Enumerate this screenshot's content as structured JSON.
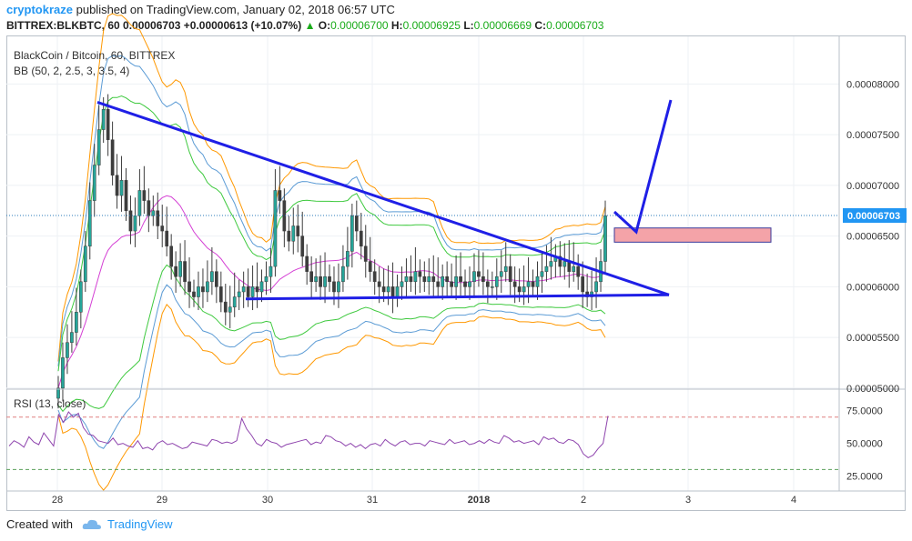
{
  "header": {
    "author": "cryptokraze",
    "published_text": "published on TradingView.com, January 02, 2018 06:57 UTC",
    "symbol": "BITTREX:BLKBTC, 60",
    "last": "0.00006703",
    "change": "+0.00000613 (+10.07%)",
    "o_label": "O:",
    "o": "0.00006700",
    "h_label": "H:",
    "h": "0.00006925",
    "l_label": "L:",
    "l": "0.00006669",
    "c_label": "C:",
    "c": "0.00006703"
  },
  "footer": {
    "created_with": "Created with",
    "brand": "TradingView"
  },
  "colors": {
    "up": "#26a69a",
    "down": "#ef5350",
    "candle": "#3d3d3d",
    "bb_orange": "#ff9800",
    "bb_blue": "#5b9bd5",
    "bb_green": "#3ec93e",
    "basis": "#d43fd4",
    "trendline": "#1f1fe6",
    "target_box": "#f4a3a8",
    "rsi": "#8e44ad",
    "price_badge": "#2196f3"
  },
  "chart_data": {
    "type": "candlestick",
    "title": "BlackCoin / Bitcoin, 60, BITTREX",
    "indicator_label": "BB (50, 2, 2.5, 3, 3.5, 4)",
    "x_ticks": [
      "28",
      "29",
      "30",
      "31",
      "2018",
      "2",
      "3",
      "4"
    ],
    "y_ticks": [
      "0.00008000",
      "0.00007500",
      "0.00007000",
      "0.00006500",
      "0.00006000",
      "0.00005500",
      "0.00005000"
    ],
    "y_range": [
      4.99e-05,
      8.47e-05
    ],
    "last_price_label": "0.00006703",
    "last_price": 6.703e-05,
    "candles_close": [
      5.0,
      5.3,
      5.45,
      5.55,
      5.75,
      6.05,
      6.4,
      6.85,
      7.2,
      7.55,
      7.75,
      7.45,
      7.1,
      6.9,
      7.05,
      6.75,
      6.55,
      6.7,
      6.95,
      6.85,
      6.7,
      6.75,
      6.6,
      6.55,
      6.4,
      6.2,
      6.1,
      6.25,
      6.05,
      5.95,
      5.9,
      6.0,
      5.95,
      6.05,
      6.15,
      6.0,
      5.85,
      5.75,
      5.8,
      5.9,
      5.95,
      6.0,
      5.9,
      6.0,
      5.95,
      6.05,
      6.1,
      6.2,
      6.95,
      6.85,
      6.55,
      6.45,
      6.6,
      6.5,
      6.3,
      6.15,
      6.05,
      6.1,
      6.0,
      6.1,
      6.05,
      5.95,
      6.05,
      6.2,
      6.35,
      6.7,
      6.55,
      6.4,
      6.25,
      6.15,
      6.05,
      6.0,
      5.95,
      6.0,
      5.9,
      6.0,
      6.05,
      6.1,
      6.05,
      6.15,
      6.1,
      6.05,
      6.1,
      6.05,
      6.0,
      6.1,
      6.05,
      6.0,
      6.1,
      6.05,
      6.0,
      6.05,
      6.15,
      6.1,
      6.05,
      6.0,
      6.0,
      6.1,
      6.15,
      6.2,
      6.05,
      6.0,
      5.95,
      6.0,
      6.05,
      6.0,
      6.1,
      6.15,
      6.2,
      6.25,
      6.3,
      6.2,
      6.25,
      6.15,
      6.2,
      6.1,
      5.95,
      5.9,
      5.95,
      6.05,
      6.25,
      6.7
    ],
    "candles_range": [
      5.0,
      8.0
    ],
    "drawings": {
      "triangle_upper_from": [
        7.82e-05,
        "28 07:00"
      ],
      "triangle_lower": 5.88e-05,
      "target_zone": [
        6.44e-05,
        6.58e-05
      ]
    },
    "rsi": {
      "label": "RSI (13, close)",
      "ticks": [
        "75.0000",
        "50.0000",
        "25.0000"
      ],
      "levels": [
        70,
        30
      ],
      "range": [
        15,
        90
      ],
      "values": [
        48,
        52,
        50,
        47,
        55,
        51,
        49,
        58,
        53,
        48,
        72,
        66,
        74,
        70,
        73,
        62,
        57,
        56,
        52,
        51,
        50,
        54,
        49,
        50,
        48,
        47,
        52,
        46,
        47,
        45,
        50,
        52,
        49,
        50,
        48,
        46,
        47,
        51,
        50,
        49,
        48,
        53,
        52,
        50,
        51,
        50,
        52,
        69,
        61,
        56,
        50,
        48,
        53,
        51,
        50,
        47,
        49,
        50,
        51,
        52,
        53,
        49,
        51,
        50,
        56,
        55,
        52,
        51,
        48,
        50,
        47,
        49,
        46,
        49,
        50,
        48,
        53,
        50,
        48,
        51,
        52,
        49,
        50,
        50,
        48,
        52,
        51,
        50,
        49,
        53,
        50,
        51,
        52,
        49,
        50,
        52,
        50,
        53,
        51,
        50,
        56,
        54,
        51,
        52,
        50,
        51,
        52,
        49,
        55,
        53,
        54,
        51,
        50,
        53,
        52,
        49,
        42,
        39,
        41,
        46,
        50,
        71
      ]
    },
    "grid": true
  }
}
